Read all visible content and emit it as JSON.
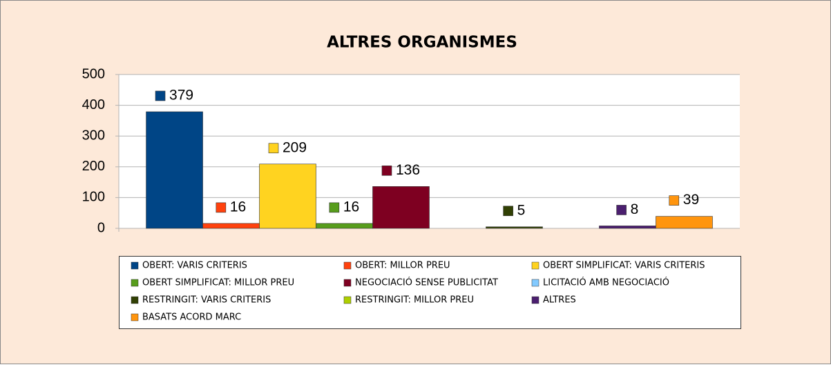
{
  "chart_data": {
    "type": "bar",
    "title": "ALTRES ORGANISMES",
    "categories": [
      null
    ],
    "series": [
      {
        "name": "OBERT: VARIS CRITERIS",
        "color": "#004586",
        "values": [
          379
        ]
      },
      {
        "name": "OBERT: MILLOR PREU",
        "color": "#ff420e",
        "values": [
          16
        ]
      },
      {
        "name": "OBERT SIMPLIFICAT: VARIS CRITERIS",
        "color": "#ffd320",
        "values": [
          209
        ]
      },
      {
        "name": "OBERT SIMPLIFICAT: MILLOR PREU",
        "color": "#579d1c",
        "values": [
          16
        ]
      },
      {
        "name": "NEGOCIACIÓ SENSE PUBLICITAT",
        "color": "#7e0021",
        "values": [
          136
        ]
      },
      {
        "name": "LICITACIÓ AMB NEGOCIACIÓ",
        "color": "#83caff",
        "values": [
          null
        ]
      },
      {
        "name": "RESTRINGIT: VARIS CRITERIS",
        "color": "#314004",
        "values": [
          5
        ]
      },
      {
        "name": "RESTRINGIT: MILLOR PREU",
        "color": "#aecf00",
        "values": [
          null
        ]
      },
      {
        "name": "ALTRES",
        "color": "#4b1f6f",
        "values": [
          8
        ]
      },
      {
        "name": "BASATS ACORD MARC",
        "color": "#ff950e",
        "values": [
          39
        ]
      }
    ],
    "ylim": [
      0,
      500
    ],
    "yticks": [
      0,
      100,
      200,
      300,
      400,
      500
    ],
    "grid": true,
    "legend": "bottom"
  }
}
